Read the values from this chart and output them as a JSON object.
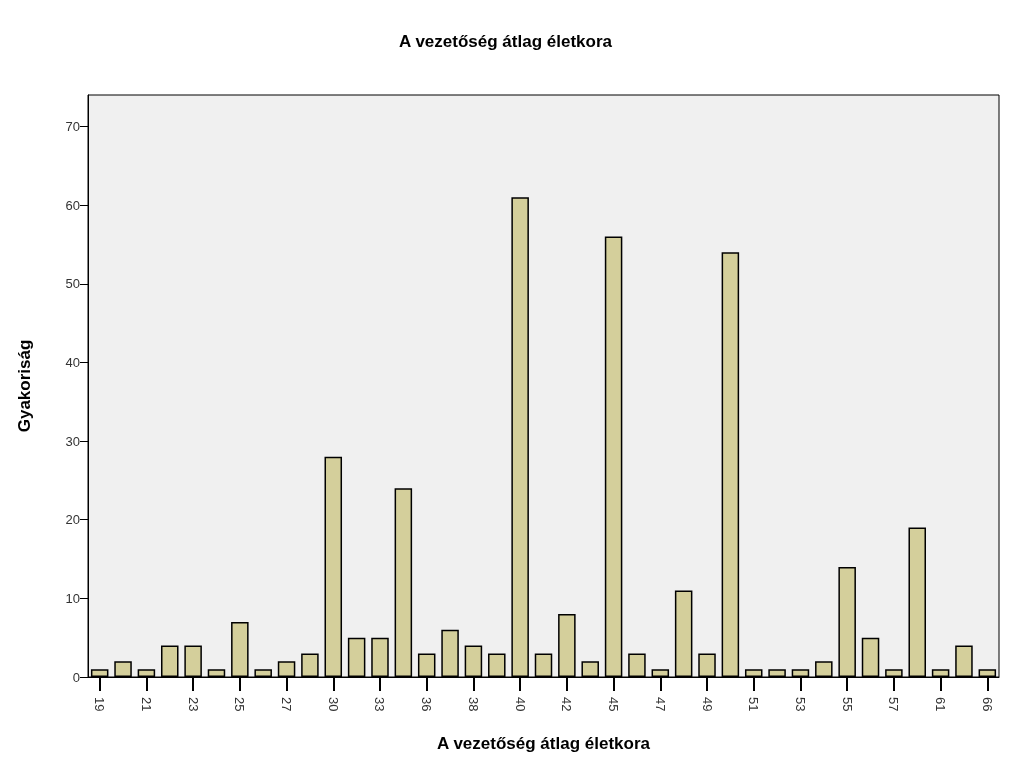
{
  "chart_data": {
    "type": "bar",
    "title": "A vezetőség átlag életkora",
    "xlabel": "A vezetőség átlag életkora",
    "ylabel": "Gyakoriság",
    "categories": [
      "19",
      null,
      "21",
      null,
      "23",
      null,
      "25",
      null,
      "27",
      null,
      "30",
      null,
      "33",
      null,
      "36",
      null,
      "38",
      null,
      "40",
      null,
      "42",
      null,
      "45",
      null,
      "47",
      null,
      "49",
      null,
      "51",
      null,
      "53",
      null,
      "55",
      null,
      "57",
      null,
      "61",
      null,
      "66"
    ],
    "values": [
      1,
      2,
      1,
      4,
      4,
      1,
      7,
      1,
      2,
      3,
      28,
      5,
      5,
      24,
      3,
      6,
      4,
      3,
      61,
      3,
      8,
      2,
      56,
      3,
      1,
      11,
      3,
      54,
      1,
      1,
      1,
      2,
      14,
      5,
      1,
      19,
      1,
      4,
      1
    ],
    "color": "#d4cf9b",
    "ylim": [
      0,
      74
    ],
    "yticks": [
      0,
      10,
      20,
      30,
      40,
      50,
      60,
      70
    ],
    "grid": false
  }
}
